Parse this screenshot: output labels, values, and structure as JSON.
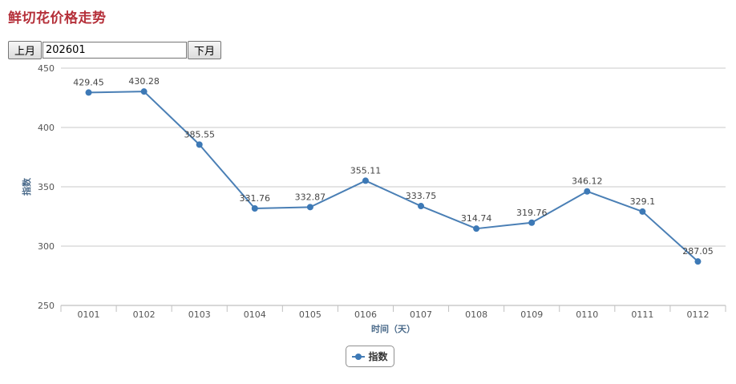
{
  "page": {
    "title": "鲜切花价格走势"
  },
  "month_selector": {
    "prev_label": "上月",
    "value": "202601",
    "next_label": "下月"
  },
  "colors": {
    "series": "#4a7fb5",
    "point": "#3d79b6",
    "title": "#b5303a",
    "axis_title": "#4a6a8a",
    "grid": "#c8c8c8"
  },
  "legend": {
    "label": "指数",
    "placement": "bottom-center"
  },
  "chart_data": {
    "type": "line",
    "title": "",
    "xlabel": "时间（天）",
    "ylabel": "指数",
    "categories": [
      "0101",
      "0102",
      "0103",
      "0104",
      "0105",
      "0106",
      "0107",
      "0108",
      "0109",
      "0110",
      "0111",
      "0112"
    ],
    "series": [
      {
        "name": "指数",
        "values": [
          429.45,
          430.28,
          385.55,
          331.76,
          332.87,
          355.11,
          333.75,
          314.74,
          319.76,
          346.12,
          329.1,
          287.05
        ]
      }
    ],
    "ylim": [
      250,
      450
    ],
    "yticks": [
      250,
      300,
      350,
      400,
      450
    ],
    "grid": true,
    "data_labels": true
  }
}
